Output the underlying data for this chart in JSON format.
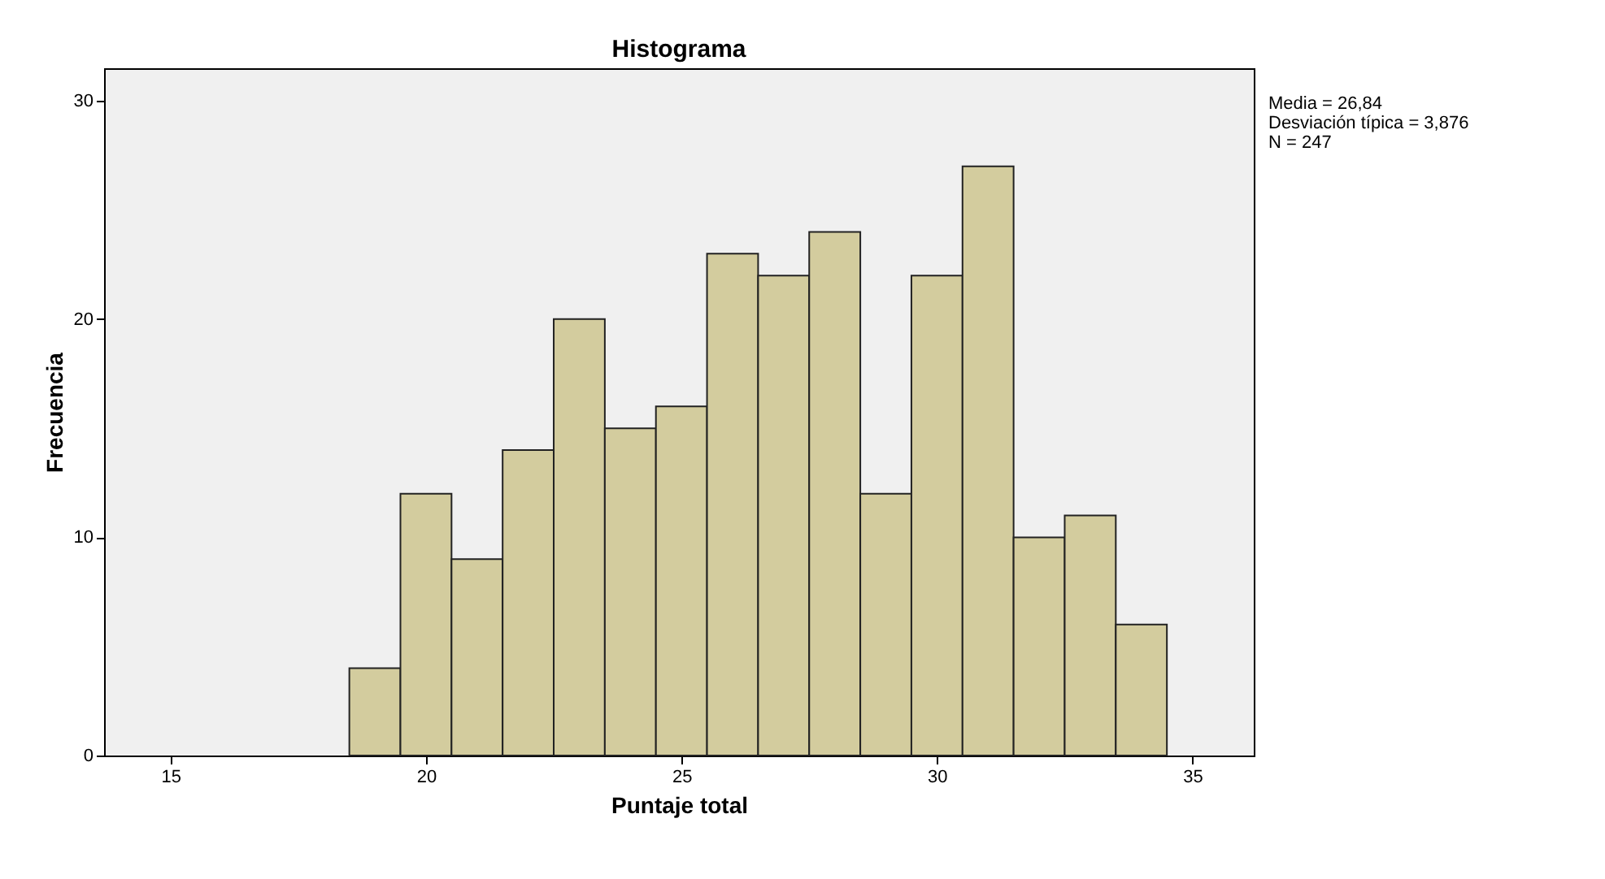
{
  "chart_data": {
    "type": "histogram",
    "title": "Histograma",
    "xlabel": "Puntaje total",
    "ylabel": "Frecuencia",
    "bins": [
      18.5,
      19.5,
      20.5,
      21.5,
      22.5,
      23.5,
      24.5,
      25.5,
      26.5,
      27.5,
      28.5,
      29.5,
      30.5,
      31.5,
      32.5,
      33.5,
      34.5
    ],
    "values": [
      4,
      12,
      9,
      14,
      20,
      15,
      16,
      23,
      22,
      24,
      12,
      22,
      27,
      10,
      11,
      6
    ],
    "color": "#d3cc9e",
    "xlim": [
      13.7,
      36.2
    ],
    "xticks": [
      15,
      20,
      25,
      30,
      35
    ],
    "ylim": [
      0,
      31.5
    ],
    "yticks": [
      0,
      10,
      20,
      30
    ],
    "annotations": [
      "Media = 26,84",
      "Desviación típica = 3,876",
      "N = 247"
    ]
  }
}
